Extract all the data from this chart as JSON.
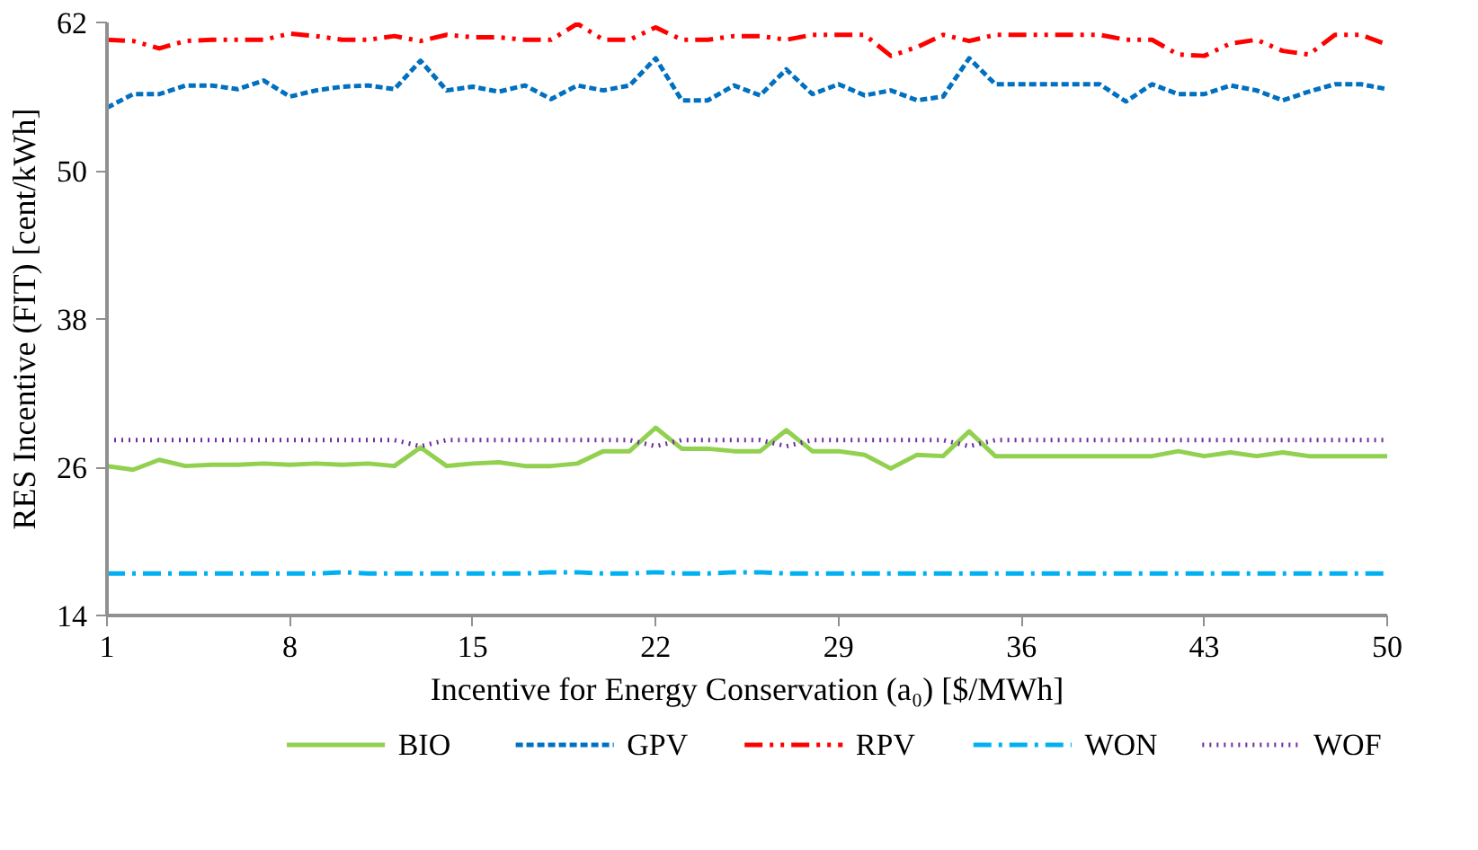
{
  "chart_data": {
    "type": "line",
    "xlabel": "Incentive for Energy Conservation (a₀) [$/MWh]",
    "ylabel": "RES Incentive (FIT) [cent/kWh]",
    "x": [
      1,
      2,
      3,
      4,
      5,
      6,
      7,
      8,
      9,
      10,
      11,
      12,
      13,
      14,
      15,
      16,
      17,
      18,
      19,
      20,
      21,
      22,
      23,
      24,
      25,
      26,
      27,
      28,
      29,
      30,
      31,
      32,
      33,
      34,
      35,
      36,
      37,
      38,
      39,
      40,
      41,
      42,
      43,
      44,
      45,
      46,
      47,
      48,
      49,
      50
    ],
    "xlim": [
      1,
      50
    ],
    "xticks": [
      1,
      8,
      15,
      22,
      29,
      36,
      43,
      50
    ],
    "ylim": [
      14,
      62
    ],
    "yticks": [
      14,
      26,
      38,
      50,
      62
    ],
    "grid": false,
    "legend": "bottom",
    "marker": "none",
    "series": [
      {
        "name": "BIO",
        "color": "#92d050",
        "line_style": "solid",
        "values": [
          26.1,
          25.8,
          26.6,
          26.1,
          26.2,
          26.2,
          26.3,
          26.2,
          26.3,
          26.2,
          26.3,
          26.1,
          27.6,
          26.1,
          26.3,
          26.4,
          26.1,
          26.1,
          26.3,
          27.3,
          27.3,
          29.2,
          27.5,
          27.5,
          27.3,
          27.3,
          29.0,
          27.3,
          27.3,
          27.0,
          25.9,
          27.0,
          26.9,
          28.9,
          26.9,
          26.9,
          26.9,
          26.9,
          26.9,
          26.9,
          26.9,
          27.3,
          26.9,
          27.2,
          26.9,
          27.2,
          26.9,
          26.9,
          26.9,
          26.9
        ]
      },
      {
        "name": "GPV",
        "color": "#0070c0",
        "line_style": "dashed",
        "values": [
          55.1,
          56.2,
          56.2,
          56.9,
          56.9,
          56.6,
          57.3,
          56.0,
          56.5,
          56.8,
          56.9,
          56.6,
          58.9,
          56.5,
          56.8,
          56.4,
          56.9,
          55.8,
          56.9,
          56.5,
          56.9,
          59.1,
          55.7,
          55.7,
          56.9,
          56.1,
          58.2,
          56.2,
          57.0,
          56.1,
          56.5,
          55.7,
          56.0,
          59.1,
          57.0,
          57.0,
          57.0,
          57.0,
          57.0,
          55.6,
          57.0,
          56.2,
          56.2,
          56.9,
          56.5,
          55.7,
          56.4,
          57.0,
          57.0,
          56.6
        ]
      },
      {
        "name": "RPV",
        "color": "#ff0000",
        "line_style": "dashdotdot",
        "values": [
          60.6,
          60.5,
          59.9,
          60.5,
          60.6,
          60.6,
          60.6,
          61.1,
          60.9,
          60.6,
          60.6,
          60.9,
          60.5,
          61.0,
          60.8,
          60.8,
          60.6,
          60.6,
          61.9,
          60.6,
          60.6,
          61.6,
          60.6,
          60.6,
          60.9,
          60.9,
          60.6,
          61.0,
          61.0,
          61.0,
          59.3,
          60.0,
          61.0,
          60.5,
          61.0,
          61.0,
          61.0,
          61.0,
          61.0,
          60.6,
          60.6,
          59.4,
          59.3,
          60.3,
          60.6,
          59.7,
          59.4,
          61.0,
          61.0,
          60.2
        ]
      },
      {
        "name": "WON",
        "color": "#00b0f0",
        "line_style": "dashdot",
        "values": [
          17.4,
          17.4,
          17.4,
          17.4,
          17.4,
          17.4,
          17.4,
          17.4,
          17.4,
          17.5,
          17.4,
          17.4,
          17.4,
          17.4,
          17.4,
          17.4,
          17.4,
          17.5,
          17.5,
          17.4,
          17.4,
          17.5,
          17.4,
          17.4,
          17.5,
          17.5,
          17.4,
          17.4,
          17.4,
          17.4,
          17.4,
          17.4,
          17.4,
          17.4,
          17.4,
          17.4,
          17.4,
          17.4,
          17.4,
          17.4,
          17.4,
          17.4,
          17.4,
          17.4,
          17.4,
          17.4,
          17.4,
          17.4,
          17.4,
          17.4
        ]
      },
      {
        "name": "WOF",
        "color": "#7030a0",
        "line_style": "dotted",
        "values": [
          28.2,
          28.2,
          28.2,
          28.2,
          28.2,
          28.2,
          28.2,
          28.2,
          28.2,
          28.2,
          28.2,
          28.2,
          27.7,
          28.2,
          28.2,
          28.2,
          28.2,
          28.2,
          28.2,
          28.2,
          28.2,
          27.7,
          28.2,
          28.2,
          28.2,
          28.2,
          27.7,
          28.2,
          28.2,
          28.2,
          28.2,
          28.2,
          28.2,
          27.7,
          28.2,
          28.2,
          28.2,
          28.2,
          28.2,
          28.2,
          28.2,
          28.2,
          28.2,
          28.2,
          28.2,
          28.2,
          28.2,
          28.2,
          28.2,
          28.2
        ]
      }
    ]
  }
}
